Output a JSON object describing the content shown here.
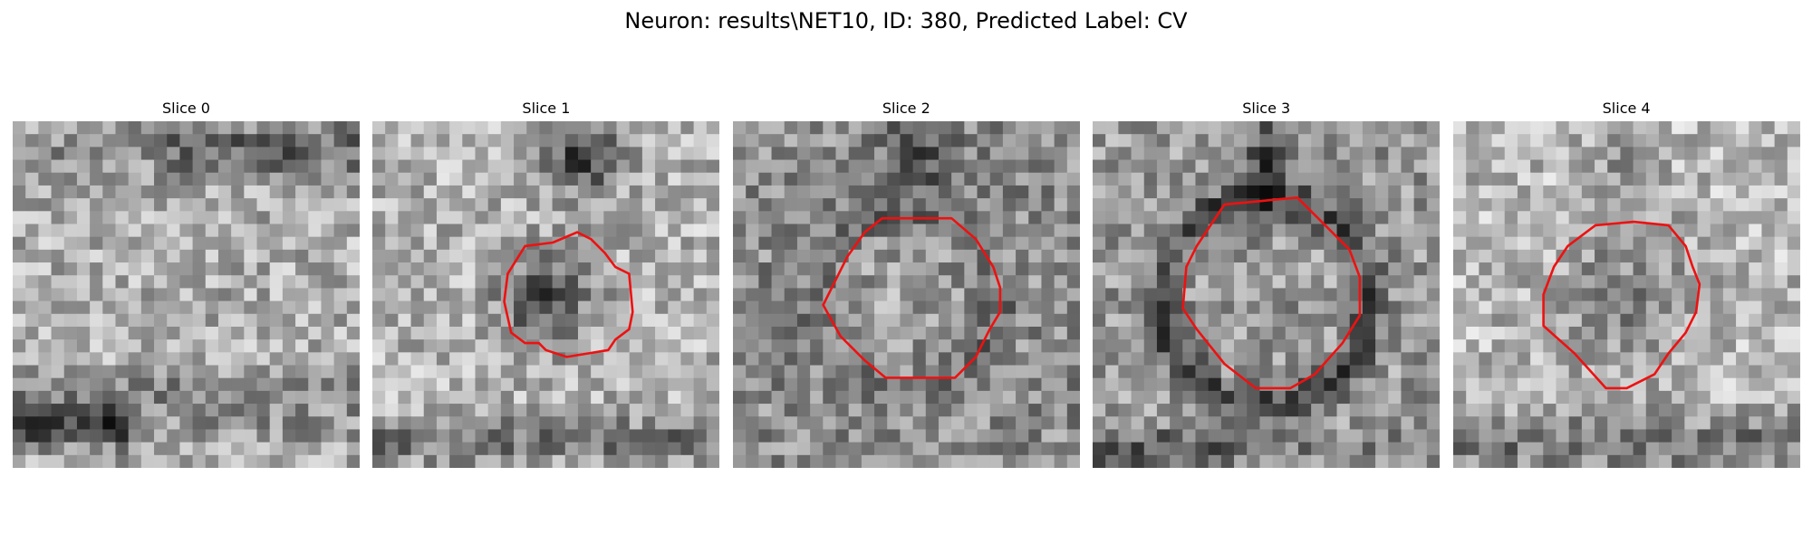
{
  "figure": {
    "title": "Neuron: results\\NET10, ID: 380, Predicted Label: CV"
  },
  "slices": [
    {
      "title": "Slice 0",
      "has_contour": false
    },
    {
      "title": "Slice 1",
      "has_contour": true
    },
    {
      "title": "Slice 2",
      "has_contour": true
    },
    {
      "title": "Slice 3",
      "has_contour": true
    },
    {
      "title": "Slice 4",
      "has_contour": true
    }
  ],
  "colors": {
    "contour": "#ee1111",
    "background": "#ffffff"
  },
  "image": {
    "colormap": "gray",
    "grid_size": 27
  }
}
